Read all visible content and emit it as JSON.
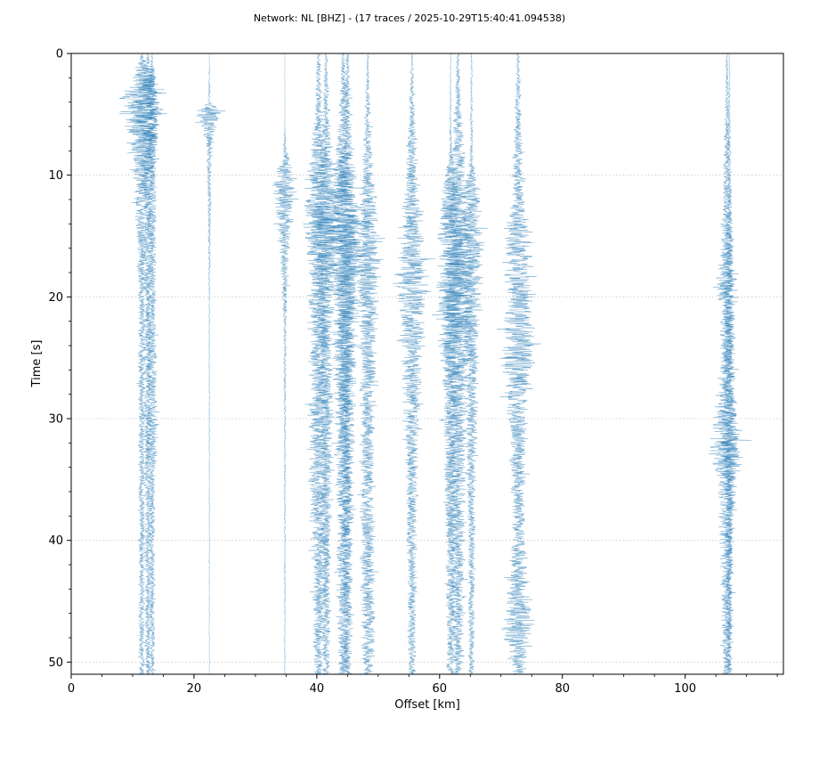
{
  "chart_data": {
    "type": "line",
    "title": "Network: NL [BHZ] - (17 traces / 2025-10-29T15:40:41.094538)",
    "xlabel": "Offset [km]",
    "ylabel": "Time [s]",
    "xlim": [
      0,
      116
    ],
    "ylim": [
      0,
      51
    ],
    "y_inverted": true,
    "grid": "horizontal-dotted",
    "x_ticks": [
      0,
      20,
      40,
      60,
      80,
      100
    ],
    "y_ticks": [
      0,
      10,
      20,
      30,
      40,
      50
    ],
    "colors": {
      "trace": "#1f77b4",
      "grid": "#b0b0b0",
      "axis": "#000000"
    },
    "traces": [
      {
        "offset": 11.5,
        "color": "#1f77b4",
        "envelope": [
          [
            0,
            0.2
          ],
          [
            2,
            2.5
          ],
          [
            4,
            4.5
          ],
          [
            6,
            3.5
          ],
          [
            9,
            2.0
          ],
          [
            14,
            1.2
          ],
          [
            20,
            0.8
          ],
          [
            33,
            0.7
          ],
          [
            51,
            0.6
          ]
        ]
      },
      {
        "offset": 12.5,
        "color": "#1f77b4",
        "envelope": [
          [
            0,
            0.2
          ],
          [
            2,
            2.0
          ],
          [
            4,
            2.8
          ],
          [
            6,
            2.4
          ],
          [
            9,
            1.5
          ],
          [
            14,
            0.9
          ],
          [
            20,
            0.7
          ],
          [
            33,
            0.8
          ],
          [
            51,
            0.6
          ]
        ]
      },
      {
        "offset": 13.2,
        "color": "#1f77b4",
        "envelope": [
          [
            0,
            0.1
          ],
          [
            4,
            1.4
          ],
          [
            10,
            0.9
          ],
          [
            20,
            0.8
          ],
          [
            33,
            1.2
          ],
          [
            34,
            0.6
          ],
          [
            51,
            0.5
          ]
        ]
      },
      {
        "offset": 22.5,
        "color": "#1f77b4",
        "envelope": [
          [
            0,
            0.05
          ],
          [
            4,
            0.3
          ],
          [
            5,
            3.5
          ],
          [
            6,
            1.5
          ],
          [
            8,
            0.6
          ],
          [
            13,
            0.4
          ],
          [
            20,
            0.15
          ],
          [
            51,
            0.1
          ]
        ]
      },
      {
        "offset": 34.8,
        "color": "#1f77b4",
        "envelope": [
          [
            0,
            0.05
          ],
          [
            6,
            0.1
          ],
          [
            8,
            0.5
          ],
          [
            11,
            2.8
          ],
          [
            13,
            2.0
          ],
          [
            16,
            1.0
          ],
          [
            22,
            0.4
          ],
          [
            30,
            0.2
          ],
          [
            51,
            0.15
          ]
        ]
      },
      {
        "offset": 40.3,
        "color": "#1f77b4",
        "envelope": [
          [
            0,
            0.4
          ],
          [
            5,
            0.9
          ],
          [
            10,
            2.2
          ],
          [
            14,
            3.2
          ],
          [
            18,
            2.4
          ],
          [
            25,
            1.8
          ],
          [
            31,
            2.2
          ],
          [
            40,
            1.5
          ],
          [
            51,
            1.0
          ]
        ]
      },
      {
        "offset": 41.5,
        "color": "#1f77b4",
        "envelope": [
          [
            0,
            0.3
          ],
          [
            6,
            0.8
          ],
          [
            11,
            2.5
          ],
          [
            15,
            3.0
          ],
          [
            20,
            1.8
          ],
          [
            30,
            1.3
          ],
          [
            51,
            0.8
          ]
        ]
      },
      {
        "offset": 44.3,
        "color": "#1f77b4",
        "envelope": [
          [
            0,
            0.3
          ],
          [
            7,
            1.2
          ],
          [
            12,
            2.8
          ],
          [
            15,
            3.8
          ],
          [
            20,
            2.6
          ],
          [
            28,
            1.8
          ],
          [
            40,
            1.4
          ],
          [
            51,
            1.0
          ]
        ]
      },
      {
        "offset": 45.0,
        "color": "#1f77b4",
        "envelope": [
          [
            0,
            0.3
          ],
          [
            7,
            1.0
          ],
          [
            11,
            2.4
          ],
          [
            15,
            3.4
          ],
          [
            21,
            2.2
          ],
          [
            30,
            1.5
          ],
          [
            51,
            0.9
          ]
        ]
      },
      {
        "offset": 48.3,
        "color": "#1f77b4",
        "envelope": [
          [
            0,
            0.2
          ],
          [
            8,
            0.9
          ],
          [
            13,
            2.0
          ],
          [
            17,
            2.8
          ],
          [
            22,
            2.0
          ],
          [
            30,
            1.4
          ],
          [
            45,
            1.6
          ],
          [
            51,
            1.0
          ]
        ]
      },
      {
        "offset": 55.5,
        "color": "#1f77b4",
        "envelope": [
          [
            0,
            0.2
          ],
          [
            5,
            0.6
          ],
          [
            10,
            1.4
          ],
          [
            13,
            2.2
          ],
          [
            17,
            3.2
          ],
          [
            21,
            3.0
          ],
          [
            25,
            2.0
          ],
          [
            35,
            1.2
          ],
          [
            51,
            0.8
          ]
        ]
      },
      {
        "offset": 61.8,
        "color": "#1f77b4",
        "envelope": [
          [
            0,
            0.1
          ],
          [
            8,
            0.3
          ],
          [
            11,
            1.8
          ],
          [
            15,
            2.6
          ],
          [
            19,
            3.0
          ],
          [
            23,
            2.6
          ],
          [
            28,
            1.6
          ],
          [
            40,
            1.1
          ],
          [
            51,
            0.8
          ]
        ]
      },
      {
        "offset": 63.0,
        "color": "#1f77b4",
        "envelope": [
          [
            0,
            0.3
          ],
          [
            6,
            0.9
          ],
          [
            11,
            2.0
          ],
          [
            15,
            3.2
          ],
          [
            20,
            3.6
          ],
          [
            24,
            3.2
          ],
          [
            28,
            2.0
          ],
          [
            40,
            1.5
          ],
          [
            51,
            1.0
          ]
        ]
      },
      {
        "offset": 65.2,
        "color": "#1f77b4",
        "envelope": [
          [
            0,
            0.15
          ],
          [
            9,
            0.4
          ],
          [
            11,
            1.8
          ],
          [
            15,
            2.4
          ],
          [
            20,
            2.2
          ],
          [
            26,
            1.4
          ],
          [
            40,
            0.8
          ],
          [
            51,
            0.6
          ]
        ]
      },
      {
        "offset": 72.8,
        "color": "#1f77b4",
        "envelope": [
          [
            0,
            0.3
          ],
          [
            6,
            0.8
          ],
          [
            12,
            1.2
          ],
          [
            14,
            2.6
          ],
          [
            20,
            2.8
          ],
          [
            25,
            3.6
          ],
          [
            30,
            2.0
          ],
          [
            40,
            1.2
          ],
          [
            45,
            2.6
          ],
          [
            47,
            3.6
          ],
          [
            49,
            2.2
          ],
          [
            51,
            1.2
          ]
        ]
      },
      {
        "offset": 106.8,
        "color": "#1f77b4",
        "envelope": [
          [
            0,
            0.2
          ],
          [
            5,
            0.5
          ],
          [
            12,
            0.8
          ],
          [
            17,
            1.6
          ],
          [
            19,
            2.6
          ],
          [
            21,
            1.6
          ],
          [
            27,
            1.4
          ],
          [
            33,
            3.8
          ],
          [
            35,
            2.4
          ],
          [
            40,
            1.4
          ],
          [
            51,
            0.9
          ]
        ]
      },
      {
        "offset": 107.2,
        "color": "#1f77b4",
        "envelope": [
          [
            0,
            0.1
          ],
          [
            10,
            0.4
          ],
          [
            19,
            1.0
          ],
          [
            33,
            1.6
          ],
          [
            38,
            0.8
          ],
          [
            51,
            0.5
          ]
        ]
      }
    ]
  }
}
